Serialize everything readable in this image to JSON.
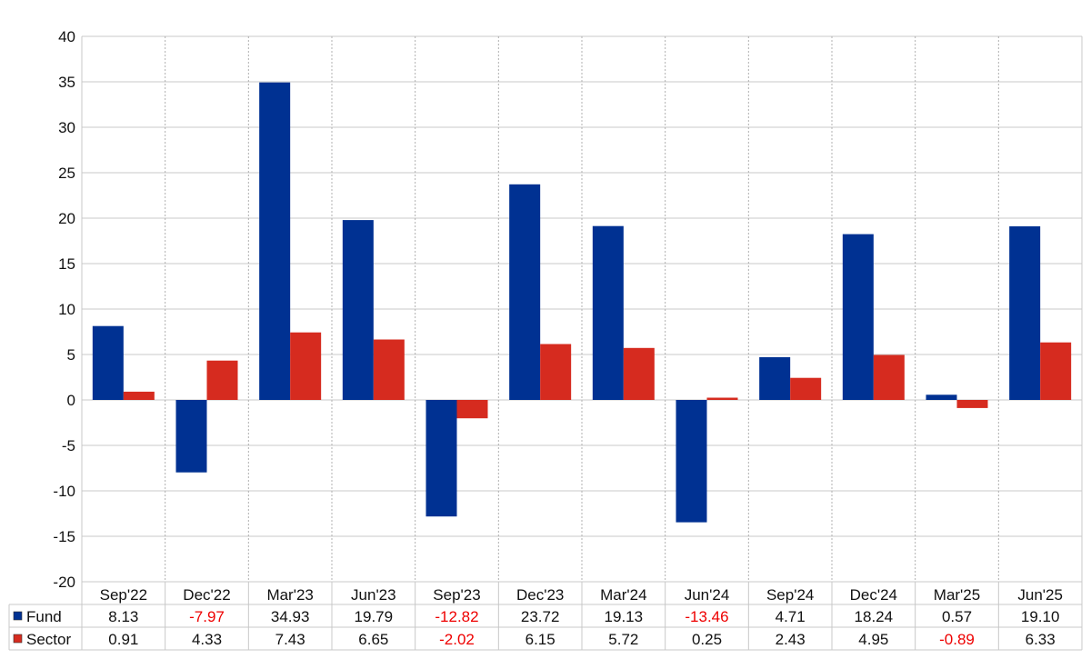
{
  "chart_data": {
    "type": "bar",
    "title": "",
    "xlabel": "",
    "ylabel": "",
    "categories": [
      "Sep'22",
      "Dec'22",
      "Mar'23",
      "Jun'23",
      "Sep'23",
      "Dec'23",
      "Mar'24",
      "Jun'24",
      "Sep'24",
      "Dec'24",
      "Mar'25",
      "Jun'25"
    ],
    "ylim": [
      -20,
      40
    ],
    "yticks": [
      "40",
      "35",
      "30",
      "25",
      "20",
      "15",
      "10",
      "5",
      "0",
      "-5",
      "-10",
      "-15",
      "-20"
    ],
    "grid": true,
    "legend_placement": "table-left",
    "negative_value_color": "#ee0000",
    "series": [
      {
        "name": "Fund",
        "color": "#003192",
        "values": [
          8.13,
          -7.97,
          34.93,
          19.79,
          -12.82,
          23.72,
          19.13,
          -13.46,
          4.71,
          18.24,
          0.57,
          19.1
        ],
        "labels": [
          "8.13",
          "-7.97",
          "34.93",
          "19.79",
          "-12.82",
          "23.72",
          "19.13",
          "-13.46",
          "4.71",
          "18.24",
          "0.57",
          "19.10"
        ]
      },
      {
        "name": "Sector",
        "color": "#d62b1f",
        "values": [
          0.91,
          4.33,
          7.43,
          6.65,
          -2.02,
          6.15,
          5.72,
          0.25,
          2.43,
          4.95,
          -0.89,
          6.33
        ],
        "labels": [
          "0.91",
          "4.33",
          "7.43",
          "6.65",
          "-2.02",
          "6.15",
          "5.72",
          "0.25",
          "2.43",
          "4.95",
          "-0.89",
          "6.33"
        ]
      }
    ]
  }
}
